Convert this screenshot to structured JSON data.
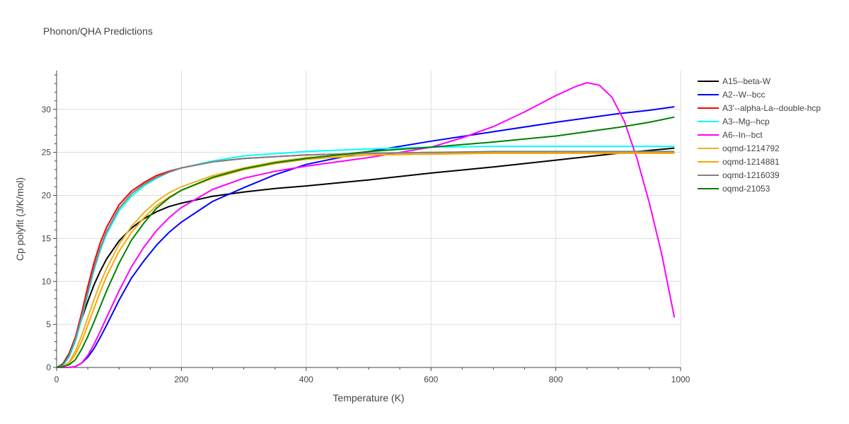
{
  "chart_data": {
    "type": "line",
    "title": "Phonon/QHA Predictions",
    "xlabel": "Temperature (K)",
    "ylabel": "Cp polyfit (J/K/mol)",
    "xlim": [
      0,
      1000
    ],
    "ylim": [
      0,
      34.5
    ],
    "xticks": [
      0,
      200,
      400,
      600,
      800,
      1000
    ],
    "yticks": [
      0,
      5,
      10,
      15,
      20,
      25,
      30
    ],
    "grid": true,
    "legend_position": "right",
    "series": [
      {
        "name": "A15--beta-W",
        "color": "#000000",
        "x": [
          0,
          10,
          20,
          30,
          40,
          50,
          60,
          70,
          80,
          100,
          120,
          140,
          160,
          180,
          200,
          250,
          300,
          350,
          400,
          500,
          600,
          700,
          800,
          900,
          990
        ],
        "y": [
          0,
          0.4,
          1.6,
          3.5,
          5.6,
          7.7,
          9.6,
          11.2,
          12.6,
          14.7,
          16.2,
          17.3,
          18.1,
          18.7,
          19.1,
          19.9,
          20.4,
          20.8,
          21.1,
          21.8,
          22.6,
          23.3,
          24.1,
          24.9,
          25.5
        ]
      },
      {
        "name": "A2--W--bcc",
        "color": "#0000ff",
        "x": [
          0,
          20,
          30,
          40,
          50,
          60,
          70,
          80,
          100,
          120,
          140,
          160,
          180,
          200,
          250,
          300,
          350,
          400,
          500,
          600,
          700,
          800,
          900,
          950,
          990
        ],
        "y": [
          0,
          0,
          0.1,
          0.5,
          1.2,
          2.2,
          3.5,
          4.9,
          7.8,
          10.4,
          12.4,
          14.2,
          15.7,
          16.9,
          19.3,
          20.9,
          22.4,
          23.6,
          25.1,
          26.3,
          27.4,
          28.5,
          29.5,
          29.9,
          30.3
        ]
      },
      {
        "name": "A3'--alpha-La--double-hcp",
        "color": "#ff0000",
        "x": [
          0,
          10,
          20,
          30,
          40,
          50,
          60,
          70,
          80,
          100,
          120,
          140,
          160,
          180,
          200,
          250,
          300,
          400,
          500,
          600,
          700,
          800,
          900,
          990
        ],
        "y": [
          0,
          0.3,
          1.5,
          3.5,
          6.3,
          9.4,
          12.2,
          14.5,
          16.3,
          18.9,
          20.5,
          21.5,
          22.3,
          22.8,
          23.2,
          23.9,
          24.3,
          24.7,
          24.9,
          25,
          25,
          25,
          25,
          25
        ]
      },
      {
        "name": "A3--Mg--hcp",
        "color": "#00ffff",
        "x": [
          0,
          10,
          20,
          30,
          40,
          50,
          60,
          70,
          80,
          100,
          120,
          140,
          160,
          180,
          200,
          250,
          300,
          400,
          500,
          600,
          700,
          800,
          900,
          990
        ],
        "y": [
          0,
          0.2,
          1.2,
          3,
          5.6,
          8.5,
          11.3,
          13.6,
          15.5,
          18.2,
          19.9,
          21.1,
          22,
          22.7,
          23.2,
          24,
          24.6,
          25.1,
          25.4,
          25.6,
          25.7,
          25.7,
          25.7,
          25.7
        ]
      },
      {
        "name": "A6--In--bct",
        "color": "#ff00ff",
        "x": [
          0,
          20,
          30,
          40,
          50,
          60,
          70,
          80,
          100,
          120,
          140,
          160,
          180,
          200,
          250,
          300,
          350,
          400,
          450,
          500,
          550,
          600,
          650,
          700,
          750,
          800,
          830,
          850,
          870,
          890,
          910,
          930,
          950,
          970,
          990
        ],
        "y": [
          0,
          0,
          0.1,
          0.5,
          1.4,
          2.7,
          4.2,
          5.8,
          8.9,
          11.7,
          14,
          15.9,
          17.4,
          18.6,
          20.7,
          22,
          22.8,
          23.4,
          23.9,
          24.4,
          25,
          25.6,
          26.7,
          28,
          29.7,
          31.6,
          32.6,
          33.1,
          32.8,
          31.4,
          28.6,
          24.3,
          19.1,
          13.1,
          5.8
        ]
      },
      {
        "name": "oqmd-1214792",
        "color": "#e6b422",
        "x": [
          0,
          10,
          20,
          30,
          40,
          50,
          60,
          70,
          80,
          100,
          120,
          140,
          160,
          180,
          200,
          250,
          300,
          350,
          400,
          500,
          600,
          700,
          800,
          900,
          990
        ],
        "y": [
          0,
          0.1,
          0.6,
          1.9,
          3.7,
          5.8,
          7.9,
          9.8,
          11.5,
          14.3,
          16.4,
          18,
          19.3,
          20.3,
          21,
          22.3,
          23.2,
          23.9,
          24.4,
          24.9,
          25,
          25,
          25,
          25,
          25
        ]
      },
      {
        "name": "oqmd-1214881",
        "color": "#ffa500",
        "x": [
          0,
          10,
          20,
          30,
          40,
          50,
          60,
          70,
          80,
          100,
          120,
          140,
          160,
          180,
          200,
          250,
          300,
          350,
          400,
          500,
          600,
          700,
          800,
          900,
          990
        ],
        "y": [
          0,
          0.1,
          0.5,
          1.5,
          3,
          4.9,
          6.9,
          8.8,
          10.6,
          13.5,
          15.7,
          17.4,
          18.8,
          19.8,
          20.6,
          22,
          23,
          23.7,
          24.2,
          24.7,
          24.8,
          24.9,
          24.9,
          24.9,
          24.9
        ]
      },
      {
        "name": "oqmd-1216039",
        "color": "#808080",
        "x": [
          0,
          10,
          20,
          30,
          40,
          50,
          60,
          70,
          80,
          100,
          120,
          140,
          160,
          180,
          200,
          250,
          300,
          400,
          500,
          600,
          700,
          800,
          900,
          990
        ],
        "y": [
          0,
          0.3,
          1.4,
          3.3,
          5.9,
          8.8,
          11.6,
          13.9,
          15.8,
          18.5,
          20.2,
          21.3,
          22.1,
          22.7,
          23.2,
          23.9,
          24.3,
          24.7,
          24.9,
          25,
          25.1,
          25.1,
          25.1,
          25.1
        ]
      },
      {
        "name": "oqmd-21053",
        "color": "#008000",
        "x": [
          0,
          10,
          20,
          30,
          40,
          50,
          60,
          70,
          80,
          100,
          120,
          140,
          160,
          180,
          200,
          250,
          300,
          350,
          400,
          500,
          600,
          700,
          800,
          850,
          900,
          950,
          990
        ],
        "y": [
          0,
          0.1,
          0.3,
          0.9,
          2.1,
          3.6,
          5.3,
          7.1,
          8.9,
          12.1,
          14.8,
          16.8,
          18.5,
          19.7,
          20.6,
          22.1,
          23.1,
          23.8,
          24.3,
          25.1,
          25.6,
          26.2,
          26.9,
          27.4,
          27.9,
          28.5,
          29.1
        ]
      }
    ]
  }
}
